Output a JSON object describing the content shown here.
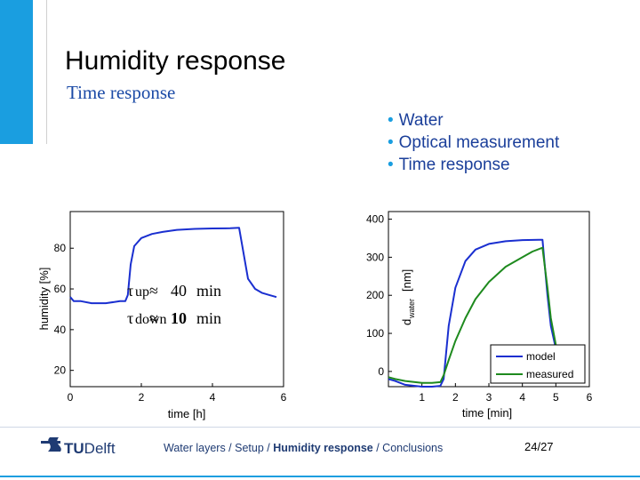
{
  "slide": {
    "title": "Humidity response",
    "subtitle": "Time response",
    "bullets": [
      "Water",
      "Optical measurement",
      "Time response"
    ],
    "footer": {
      "logo_tu": "TU",
      "logo_name": "Delft",
      "crumbs": [
        "Water layers",
        "Setup",
        "Humidity response",
        "Conclusions"
      ],
      "active_crumb": "Humidity response",
      "separator": " / ",
      "page": "24/27"
    },
    "colors": {
      "accent": "#1a9ee0",
      "text_blue": "#1b3f9a"
    }
  },
  "chart_data": [
    {
      "type": "line",
      "xlabel": "time [h]",
      "ylabel": "humidity [%]",
      "xlim": [
        0,
        6
      ],
      "ylim": [
        12,
        98
      ],
      "xticks": [
        0,
        2,
        4,
        6
      ],
      "yticks": [
        20,
        40,
        60,
        80
      ],
      "grid": false,
      "series": [
        {
          "color": "#1a2fd0",
          "x": [
            0,
            0.1,
            0.3,
            0.6,
            1.0,
            1.4,
            1.55,
            1.62,
            1.7,
            1.8,
            2.0,
            2.3,
            2.6,
            3.0,
            3.5,
            4.0,
            4.5,
            4.75,
            4.85,
            5.0,
            5.2,
            5.4,
            5.6,
            5.8
          ],
          "y": [
            56,
            54,
            54,
            53,
            53,
            54,
            54,
            57,
            72,
            81,
            85,
            87,
            88,
            89,
            89.5,
            89.7,
            89.8,
            90,
            80,
            65,
            60,
            58,
            57,
            56
          ]
        }
      ],
      "annotations": [
        {
          "text": "τ↑ ≈ 40 min",
          "symbol": "τ",
          "arrow": "up",
          "approx": "≈",
          "value": "40",
          "unit": "min"
        },
        {
          "text": "τ↓ ≈ 10 min",
          "symbol": "τ",
          "arrow": "down",
          "approx": "≈",
          "value": "10",
          "unit": "min"
        }
      ]
    },
    {
      "type": "line",
      "xlabel": "time [min]",
      "ylabel": "d_water [nm]",
      "ylabel_main": "d",
      "ylabel_sub": "water",
      "ylabel_unit": "[nm]",
      "xlim": [
        0,
        6
      ],
      "ylim": [
        -40,
        420
      ],
      "xticks": [
        1,
        2,
        3,
        4,
        5,
        6
      ],
      "yticks": [
        0,
        100,
        200,
        300,
        400
      ],
      "grid": false,
      "legend": "bottom-right",
      "series": [
        {
          "name": "model",
          "color": "#1a2fd0",
          "x": [
            0,
            0.2,
            0.5,
            1.0,
            1.3,
            1.55,
            1.65,
            1.8,
            2.0,
            2.3,
            2.6,
            3.0,
            3.5,
            4.0,
            4.5,
            4.6,
            4.75,
            4.85,
            5.0
          ],
          "y": [
            -20,
            -25,
            -35,
            -40,
            -40,
            -38,
            -20,
            120,
            220,
            290,
            320,
            335,
            342,
            345,
            346,
            346,
            200,
            120,
            60
          ]
        },
        {
          "name": "measured",
          "color": "#1e8a1e",
          "x": [
            0,
            0.2,
            0.5,
            1.0,
            1.3,
            1.55,
            1.65,
            1.8,
            2.0,
            2.3,
            2.6,
            3.0,
            3.5,
            4.0,
            4.3,
            4.6,
            4.75,
            4.85,
            5.0
          ],
          "y": [
            -15,
            -20,
            -25,
            -30,
            -30,
            -28,
            -10,
            30,
            80,
            140,
            190,
            235,
            275,
            300,
            315,
            325,
            220,
            140,
            70
          ]
        }
      ]
    }
  ]
}
